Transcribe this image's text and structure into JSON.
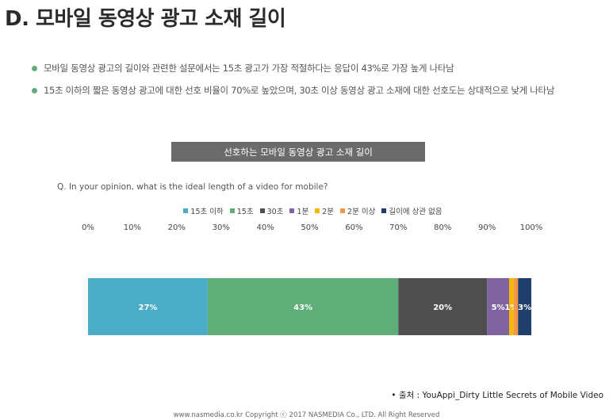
{
  "page": {
    "title": "D. 모바일 동영상 광고 소재 길이",
    "bullets": [
      "모바일 동영상 광고의 길이와 관련한 설문에서는 15초 광고가 가장 적절하다는 응답이 43%로 가장 높게 나타남",
      "15초 이하의 짧은 동영상 광고에 대한 선호 비율이 70%로 높았으며, 30초 이상 동영상 광고 소재에 대한 선호도는 상대적으로 낮게 나타남"
    ],
    "source": "• 출처 : YouAppi_Dirty Little Secrets of Mobile Video",
    "footer": "www.nasmedia.co.kr Copyright ⓒ 2017 NASMEDIA Co., LTD. All Right Reserved"
  },
  "chart_data": {
    "type": "bar",
    "orientation": "horizontal-stacked-100",
    "title": "선호하는 모바일 동영상 광고 소재 길이",
    "question": "Q. In your opinion, what is the ideal length of a video for mobile?",
    "ticks": [
      "0%",
      "10%",
      "20%",
      "30%",
      "40%",
      "50%",
      "60%",
      "70%",
      "80%",
      "90%",
      "100%"
    ],
    "xlim": [
      0,
      100
    ],
    "legend_position": "top",
    "series": [
      {
        "name": "15초 이하",
        "value": 27,
        "label": "27%",
        "color": "#4BACC6"
      },
      {
        "name": "15초",
        "value": 43,
        "label": "43%",
        "color": "#5FAE7A"
      },
      {
        "name": "30초",
        "value": 20,
        "label": "20%",
        "color": "#4F4F4F"
      },
      {
        "name": "1분",
        "value": 5,
        "label": "5%",
        "color": "#8064A2"
      },
      {
        "name": "2분",
        "value": 1,
        "label": "1%",
        "color": "#F5B800"
      },
      {
        "name": "2분 이상",
        "value": 1,
        "label": "",
        "color": "#F79646"
      },
      {
        "name": "길이에 상관 없음",
        "value": 3,
        "label": "3%",
        "color": "#1F3E6B"
      }
    ]
  }
}
